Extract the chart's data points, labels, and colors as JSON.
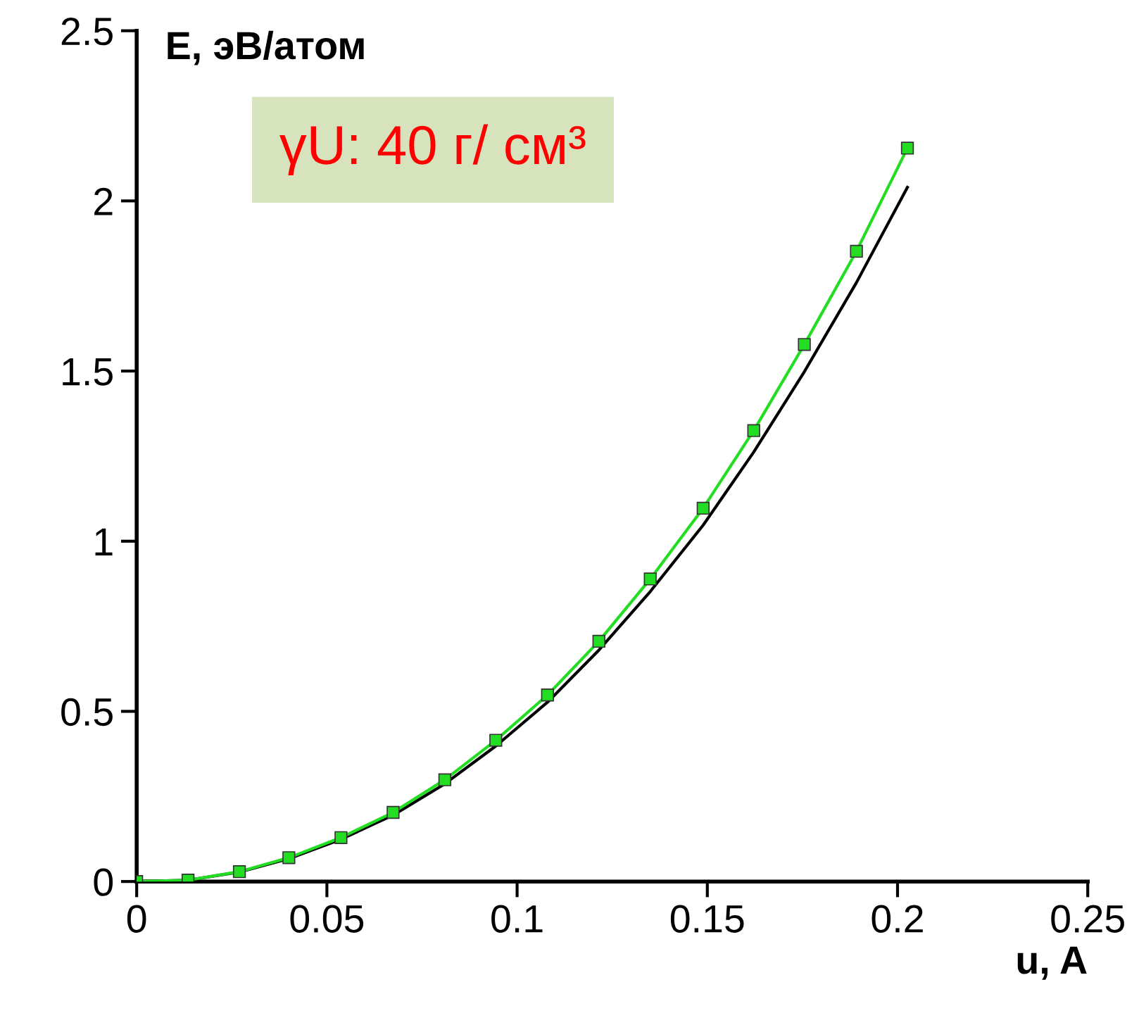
{
  "chart_data": {
    "type": "line",
    "xlabel": "u, A",
    "ylabel": "E, эВ/атом",
    "annotations": [
      "γU: 40 г/ см³"
    ],
    "xlim": [
      0,
      0.25
    ],
    "xticks": [
      0,
      0.05,
      0.1,
      0.15,
      0.2,
      0.25
    ],
    "ylim": [
      0,
      2.5
    ],
    "yticks": [
      0,
      0.5,
      1,
      1.5,
      2,
      2.5
    ],
    "grid": false,
    "legend": false,
    "series": [
      {
        "color": "#000000",
        "marker": "none",
        "x": [
          0,
          0.0135,
          0.027,
          0.04,
          0.0537,
          0.0674,
          0.081,
          0.0944,
          0.108,
          0.1215,
          0.135,
          0.1489,
          0.1622,
          0.1755,
          0.1892,
          0.2026
        ],
        "values": [
          0,
          0.004,
          0.028,
          0.067,
          0.124,
          0.195,
          0.287,
          0.398,
          0.527,
          0.68,
          0.852,
          1.047,
          1.262,
          1.498,
          1.76,
          2.04
        ]
      },
      {
        "color": "#22dd22",
        "marker": "square",
        "x": [
          0,
          0.0135,
          0.027,
          0.04,
          0.0537,
          0.0674,
          0.081,
          0.0944,
          0.108,
          0.1215,
          0.135,
          0.1489,
          0.1622,
          0.1755,
          0.1892,
          0.2026
        ],
        "values": [
          0,
          0.004,
          0.029,
          0.07,
          0.129,
          0.203,
          0.299,
          0.415,
          0.548,
          0.706,
          0.889,
          1.097,
          1.325,
          1.578,
          1.852,
          2.155
        ]
      }
    ]
  }
}
